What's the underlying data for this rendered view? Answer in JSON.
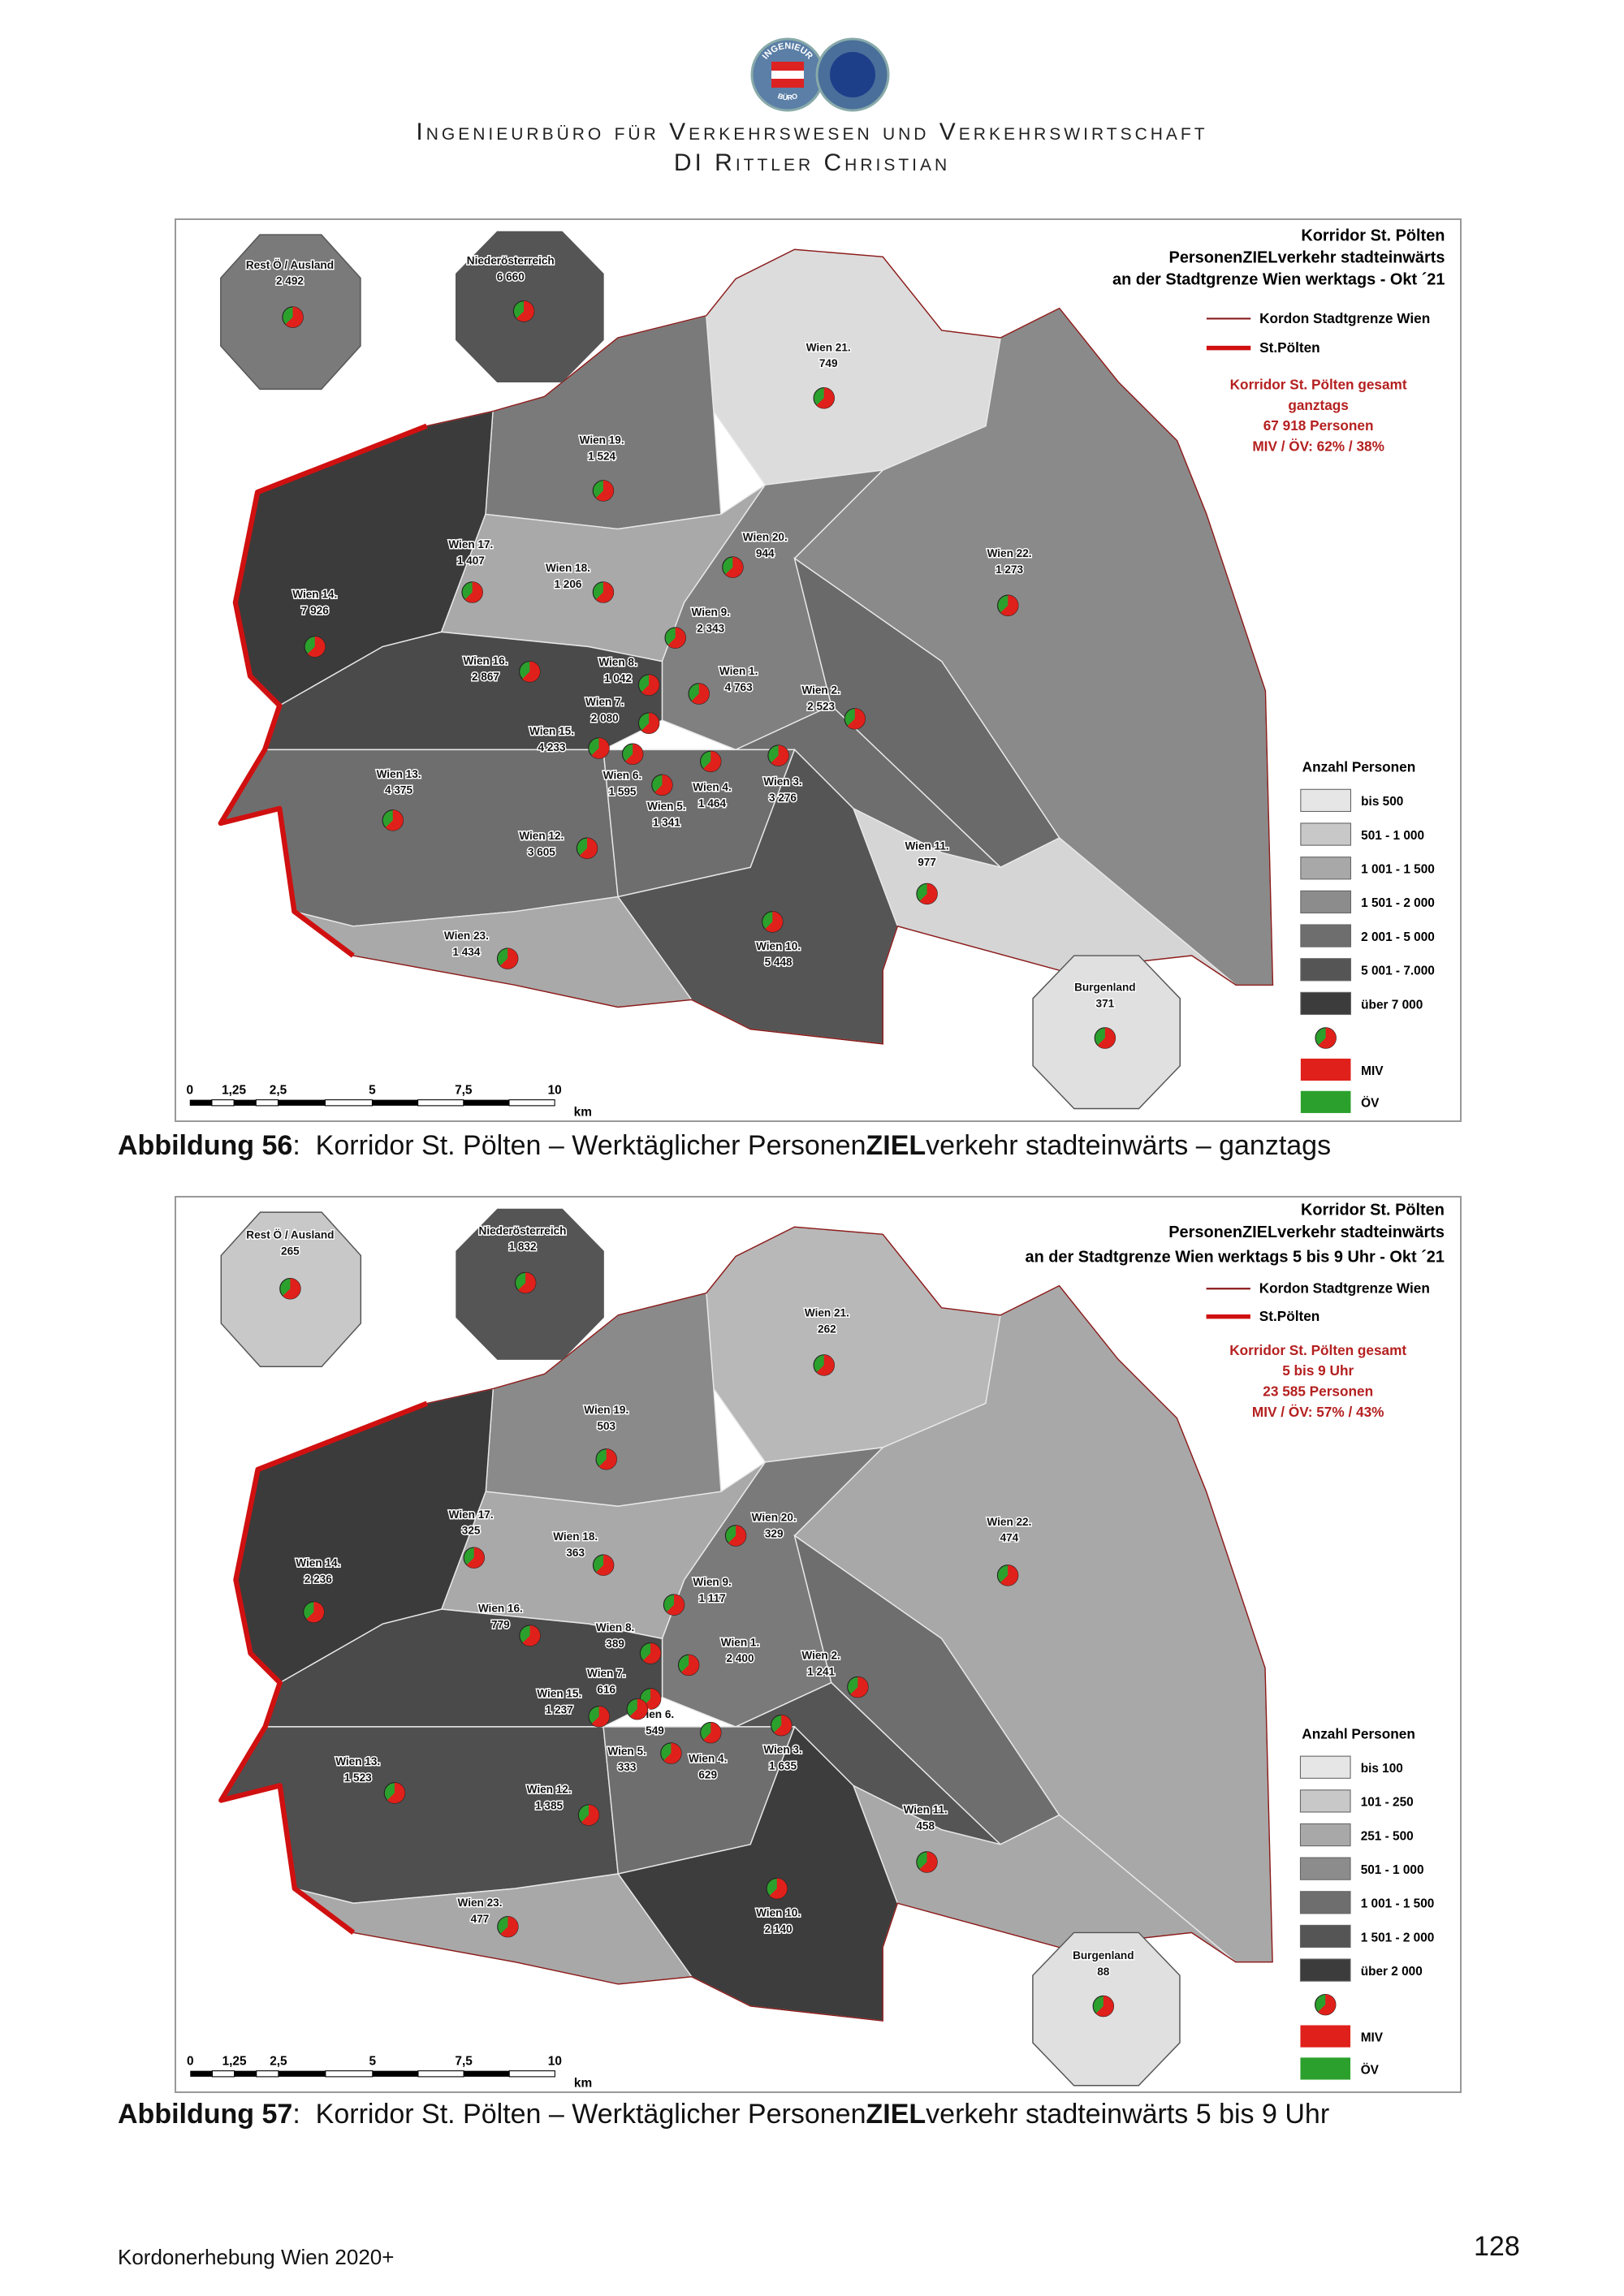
{
  "header": {
    "logo_top": "INGENIEUR",
    "logo_bottom": "BÜRO",
    "title_line1": "Ingenieurbüro für Verkehrswesen und Verkehrswirtschaft",
    "title_line2": "DI Rittler Christian"
  },
  "maps": [
    {
      "title_lines": [
        "Korridor St. Pölten",
        "PersonenZIELverkehr stadteinwärts",
        "an der Stadtgrenze Wien werktags - Okt ´21"
      ],
      "legend_kordon": "Kordon Stadtgrenze Wien",
      "legend_corridor": "St.Pölten",
      "summary_lines": [
        "Korridor St. Pölten gesamt",
        "ganztags",
        "67 918 Personen",
        "MIV / ÖV: 62% / 38%"
      ],
      "districts": [
        {
          "name": "Rest Ö / Ausland",
          "value": "2 492"
        },
        {
          "name": "Niederösterreich",
          "value": "6 660"
        },
        {
          "name": "Wien 21.",
          "value": "749"
        },
        {
          "name": "Wien 19.",
          "value": "1 524"
        },
        {
          "name": "Wien 20.",
          "value": "944"
        },
        {
          "name": "Wien 17.",
          "value": "1 407"
        },
        {
          "name": "Wien 18.",
          "value": "1 206"
        },
        {
          "name": "Wien 22.",
          "value": "1 273"
        },
        {
          "name": "Wien 14.",
          "value": "7 926"
        },
        {
          "name": "Wien 9.",
          "value": "2 343"
        },
        {
          "name": "Wien 16.",
          "value": "2 867"
        },
        {
          "name": "Wien 8.",
          "value": "1 042"
        },
        {
          "name": "Wien 1.",
          "value": "4 763"
        },
        {
          "name": "Wien 2.",
          "value": "2 523"
        },
        {
          "name": "Wien 7.",
          "value": "2 080"
        },
        {
          "name": "Wien 15.",
          "value": "4 233"
        },
        {
          "name": "Wien 6.",
          "value": "1 595"
        },
        {
          "name": "Wien 4.",
          "value": "1 464"
        },
        {
          "name": "Wien 3.",
          "value": "3 276"
        },
        {
          "name": "Wien 5.",
          "value": "1 341"
        },
        {
          "name": "Wien 13.",
          "value": "4 375"
        },
        {
          "name": "Wien 12.",
          "value": "3 605"
        },
        {
          "name": "Wien 11.",
          "value": "977"
        },
        {
          "name": "Wien 10.",
          "value": "5 448"
        },
        {
          "name": "Wien 23.",
          "value": "1 434"
        },
        {
          "name": "Burgenland",
          "value": "371"
        }
      ],
      "classes_title": "Anzahl Personen",
      "classes": [
        "bis 500",
        "501 - 1 000",
        "1 001 - 1 500",
        "1 501 - 2 000",
        "2 001 - 5 000",
        "5 001 - 7.000",
        "über 7 000"
      ],
      "miv": "MIV",
      "oev": "ÖV",
      "scale_labels": [
        "0",
        "1,25",
        "2,5",
        "5",
        "7,5",
        "10",
        "km"
      ]
    },
    {
      "title_lines": [
        "Korridor St. Pölten",
        "PersonenZIELverkehr stadteinwärts",
        "an der Stadtgrenze Wien werktags 5 bis 9 Uhr - Okt ´21"
      ],
      "legend_kordon": "Kordon Stadtgrenze Wien",
      "legend_corridor": "St.Pölten",
      "summary_lines": [
        "Korridor St. Pölten gesamt",
        "5 bis 9 Uhr",
        "23 585 Personen",
        "MIV / ÖV: 57% / 43%"
      ],
      "districts": [
        {
          "name": "Rest Ö / Ausland",
          "value": "265"
        },
        {
          "name": "Niederösterreich",
          "value": "1 832"
        },
        {
          "name": "Wien 21.",
          "value": "262"
        },
        {
          "name": "Wien 19.",
          "value": "503"
        },
        {
          "name": "Wien 20.",
          "value": "329"
        },
        {
          "name": "Wien 17.",
          "value": "325"
        },
        {
          "name": "Wien 18.",
          "value": "363"
        },
        {
          "name": "Wien 22.",
          "value": "474"
        },
        {
          "name": "Wien 14.",
          "value": "2 236"
        },
        {
          "name": "Wien 9.",
          "value": "1 117"
        },
        {
          "name": "Wien 16.",
          "value": "779"
        },
        {
          "name": "Wien 8.",
          "value": "389"
        },
        {
          "name": "Wien 1.",
          "value": "2 400"
        },
        {
          "name": "Wien 2.",
          "value": "1 241"
        },
        {
          "name": "Wien 7.",
          "value": "616"
        },
        {
          "name": "Wien 15.",
          "value": "1 237"
        },
        {
          "name": "Wien 6.",
          "value": "549"
        },
        {
          "name": "Wien 4.",
          "value": "629"
        },
        {
          "name": "Wien 3.",
          "value": "1 635"
        },
        {
          "name": "Wien 5.",
          "value": "333"
        },
        {
          "name": "Wien 13.",
          "value": "1 523"
        },
        {
          "name": "Wien 12.",
          "value": "1 385"
        },
        {
          "name": "Wien 11.",
          "value": "458"
        },
        {
          "name": "Wien 10.",
          "value": "2 140"
        },
        {
          "name": "Wien 23.",
          "value": "477"
        },
        {
          "name": "Burgenland",
          "value": "88"
        }
      ],
      "classes_title": "Anzahl Personen",
      "classes": [
        "bis 100",
        "101 - 250",
        "251 - 500",
        "501 - 1 000",
        "1 001 - 1 500",
        "1 501 - 2 000",
        "über 2 000"
      ],
      "miv": "MIV",
      "oev": "ÖV",
      "scale_labels": [
        "0",
        "1,25",
        "2,5",
        "5",
        "7,5",
        "10",
        "km"
      ]
    }
  ],
  "captions": [
    {
      "label": "Abbildung 56",
      "text_before": ":  Korridor St. Pölten – Werktäglicher Personen",
      "emphasis": "ZIEL",
      "text_after": "verkehr stadteinwärts – ganztags"
    },
    {
      "label": "Abbildung 57",
      "text_before": ":  Korridor St. Pölten – Werktäglicher Personen",
      "emphasis": "ZIEL",
      "text_after": "verkehr stadteinwärts 5 bis 9 Uhr"
    }
  ],
  "footer": {
    "left": "Kordonerhebung Wien 2020+",
    "page": "128"
  }
}
